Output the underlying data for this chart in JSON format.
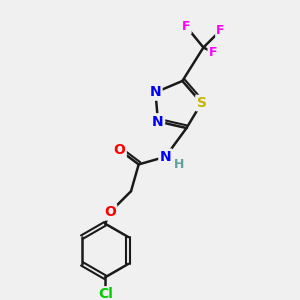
{
  "background_color": "#f0f0f0",
  "bond_color": "#1a1a1a",
  "atom_colors": {
    "N": "#0000ff",
    "S": "#c8b400",
    "O": "#ff0000",
    "F": "#ff00ff",
    "Cl": "#00cc00",
    "H": "#5fa0a0",
    "C": "#1a1a1a"
  },
  "figsize": [
    3.0,
    3.0
  ],
  "dpi": 100
}
